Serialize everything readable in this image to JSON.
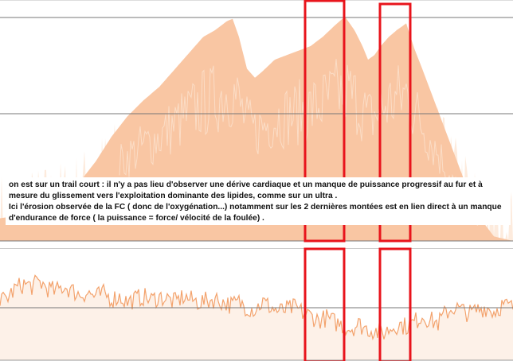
{
  "chart_data": [
    {
      "type": "area",
      "title": "",
      "xlabel": "",
      "ylabel": "",
      "grid": true,
      "xlim": [
        0,
        644
      ],
      "ylim": [
        0,
        1
      ],
      "series": [
        {
          "x": [
            0,
            20,
            40,
            60,
            80,
            100,
            120,
            140,
            160,
            180,
            200,
            220,
            240,
            255,
            270,
            285,
            292,
            300,
            310,
            320,
            330,
            345,
            360,
            375,
            390,
            405,
            420,
            433,
            445,
            455,
            462,
            470,
            478,
            488,
            498,
            510,
            520,
            530,
            545,
            560,
            575,
            590,
            605,
            620,
            644
          ],
          "values": [
            0.1,
            0.11,
            0.13,
            0.16,
            0.2,
            0.26,
            0.35,
            0.46,
            0.55,
            0.62,
            0.68,
            0.76,
            0.84,
            0.9,
            0.93,
            0.97,
            0.98,
            0.9,
            0.76,
            0.72,
            0.75,
            0.8,
            0.82,
            0.84,
            0.86,
            0.9,
            0.95,
            0.99,
            0.93,
            0.86,
            0.8,
            0.82,
            0.86,
            0.9,
            0.93,
            0.96,
            0.85,
            0.76,
            0.62,
            0.48,
            0.34,
            0.2,
            0.09,
            0.02,
            0.0
          ]
        }
      ]
    },
    {
      "type": "line",
      "title": "",
      "xlabel": "",
      "ylabel": "",
      "grid": true,
      "xlim": [
        0,
        644
      ],
      "ylim": [
        0,
        1
      ],
      "series": [
        {
          "x": [
            0,
            10,
            20,
            30,
            40,
            50,
            60,
            70,
            80,
            90,
            100,
            110,
            120,
            130,
            140,
            150,
            160,
            170,
            180,
            190,
            200,
            210,
            220,
            230,
            240,
            250,
            260,
            270,
            280,
            290,
            300,
            310,
            320,
            330,
            340,
            350,
            360,
            370,
            380,
            390,
            400,
            410,
            420,
            430,
            440,
            450,
            460,
            470,
            480,
            490,
            500,
            510,
            520,
            530,
            540,
            550,
            560,
            570,
            580,
            590,
            600,
            610,
            620,
            630,
            644
          ],
          "values": [
            0.55,
            0.6,
            0.68,
            0.72,
            0.7,
            0.74,
            0.68,
            0.65,
            0.7,
            0.66,
            0.62,
            0.64,
            0.6,
            0.63,
            0.58,
            0.6,
            0.55,
            0.58,
            0.6,
            0.57,
            0.6,
            0.58,
            0.55,
            0.6,
            0.57,
            0.55,
            0.56,
            0.58,
            0.55,
            0.52,
            0.55,
            0.5,
            0.48,
            0.55,
            0.5,
            0.46,
            0.48,
            0.5,
            0.45,
            0.42,
            0.38,
            0.4,
            0.36,
            0.33,
            0.3,
            0.34,
            0.3,
            0.28,
            0.25,
            0.3,
            0.34,
            0.32,
            0.36,
            0.42,
            0.38,
            0.35,
            0.45,
            0.5,
            0.47,
            0.44,
            0.48,
            0.5,
            0.46,
            0.52,
            0.5
          ]
        }
      ]
    }
  ],
  "annotation": {
    "lines": [
      "  on est sur un trail court :   il n'y  a pas lieu d'observer  une  dérive cardiaque et un manque de puissance progressif  au fur et à",
      "mesure du glissement vers l'exploitation dominante des lipides,  comme sur un ultra .",
      "Ici l'érosion  observée de la FC ( donc de l'oxygénation...) notamment sur les 2 dernières montées est en lien direct à un manque",
      "d'endurance de force ( la puissance = force/ vélocité de la foulée) ."
    ]
  },
  "colors": {
    "area_fill": "#f9c6a3",
    "area_light": "#fbe0cc",
    "spikes": "#fdebdd",
    "hr_line": "#f3a26c",
    "hr_fill": "#fce7d8",
    "grid": "#777777",
    "highlight": "#e8141c"
  }
}
